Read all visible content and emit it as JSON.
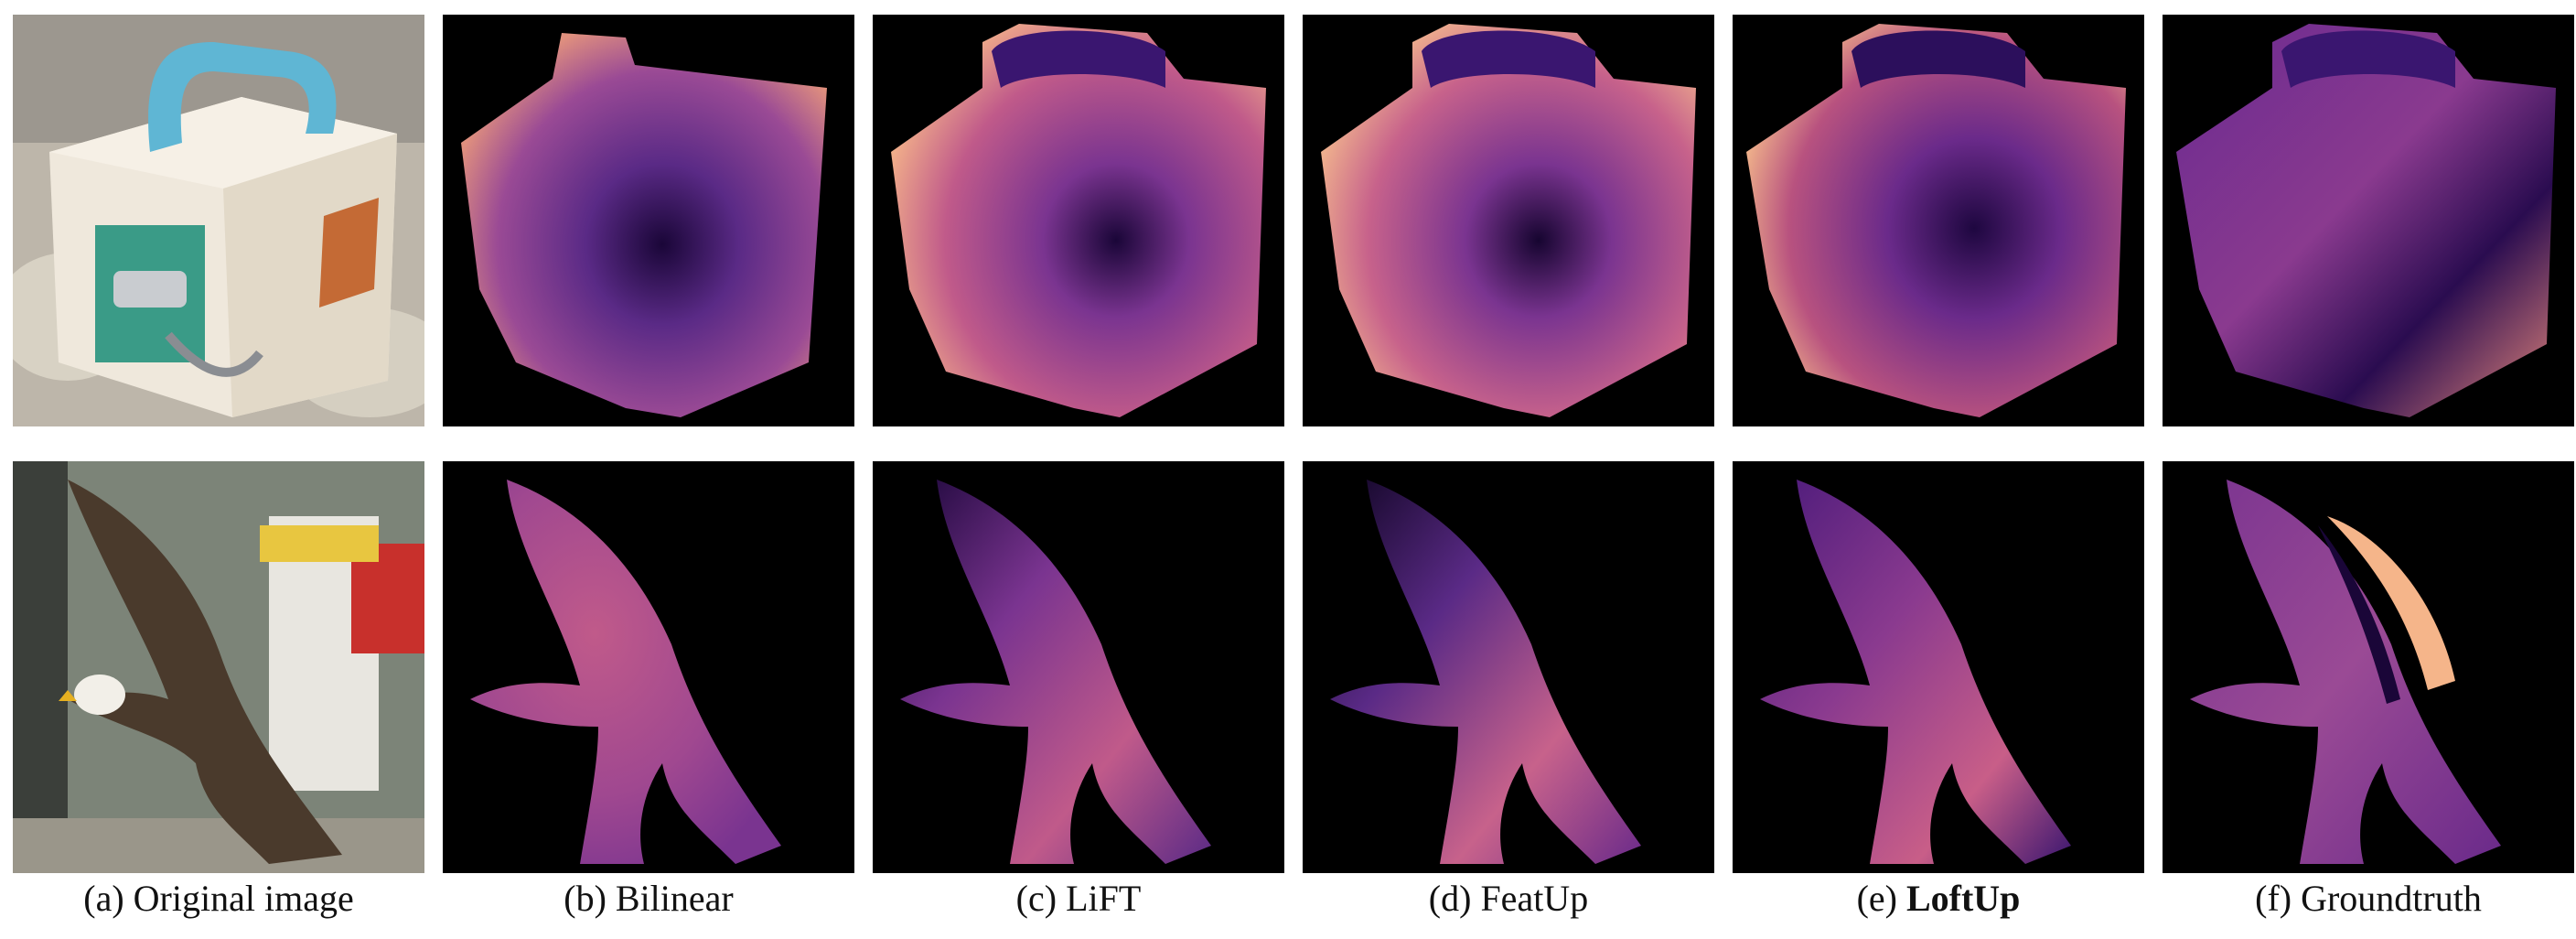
{
  "figure": {
    "captions": [
      {
        "prefix": "(a) ",
        "label": "Original image",
        "bold": false
      },
      {
        "prefix": "(b) ",
        "label": "Bilinear",
        "bold": false
      },
      {
        "prefix": "(c) ",
        "label": "LiFT",
        "bold": false
      },
      {
        "prefix": "(d) ",
        "label": "FeatUp",
        "bold": false
      },
      {
        "prefix": "(e) ",
        "label": "LoftUp",
        "bold": true
      },
      {
        "prefix": "(f) ",
        "label": "Groundtruth",
        "bold": false
      }
    ],
    "colors": {
      "background": "#000000",
      "colormap_dark": "#1a0638",
      "colormap_mid": "#8a3a8f",
      "colormap_light": "#f7b98a"
    }
  }
}
